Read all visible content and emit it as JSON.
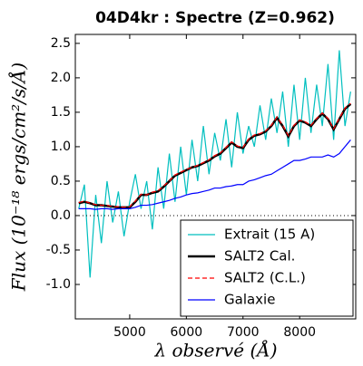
{
  "chart_data": {
    "type": "line",
    "title": "04D4kr : Spectre (Z=0.962)",
    "x_label": "λ observé (Å)",
    "y_label": "Flux (10⁻¹⁸ ergs/cm²/s/Å)",
    "x": [
      4100,
      4200,
      4300,
      4400,
      4500,
      4600,
      4700,
      4800,
      4900,
      5000,
      5100,
      5200,
      5300,
      5400,
      5500,
      5600,
      5700,
      5800,
      5900,
      6000,
      6100,
      6200,
      6300,
      6400,
      6500,
      6600,
      6700,
      6800,
      6900,
      7000,
      7100,
      7200,
      7300,
      7400,
      7500,
      7600,
      7700,
      7800,
      7900,
      8000,
      8100,
      8200,
      8300,
      8400,
      8500,
      8600,
      8700,
      8800,
      8900
    ],
    "series": [
      {
        "name": "Extrait (15 A)",
        "color": "#00bfbf",
        "width": 1.2,
        "values": [
          0.1,
          0.45,
          -0.9,
          0.3,
          -0.4,
          0.5,
          -0.1,
          0.35,
          -0.3,
          0.2,
          0.6,
          0.1,
          0.5,
          -0.2,
          0.7,
          0.1,
          0.9,
          0.2,
          1.0,
          0.3,
          1.1,
          0.5,
          1.3,
          0.6,
          1.2,
          0.8,
          1.4,
          0.7,
          1.5,
          0.9,
          1.3,
          1.0,
          1.6,
          1.1,
          1.7,
          1.2,
          1.8,
          1.0,
          1.9,
          1.1,
          2.0,
          1.2,
          1.9,
          1.3,
          2.2,
          1.1,
          2.4,
          1.3,
          1.8
        ]
      },
      {
        "name": "SALT2 Cal.",
        "color": "#000000",
        "width": 2.5,
        "values": [
          0.18,
          0.2,
          0.18,
          0.15,
          0.15,
          0.14,
          0.13,
          0.12,
          0.12,
          0.12,
          0.2,
          0.3,
          0.3,
          0.33,
          0.35,
          0.42,
          0.5,
          0.58,
          0.62,
          0.66,
          0.7,
          0.72,
          0.76,
          0.8,
          0.86,
          0.9,
          0.98,
          1.06,
          1.0,
          0.98,
          1.1,
          1.16,
          1.18,
          1.22,
          1.3,
          1.42,
          1.3,
          1.15,
          1.3,
          1.38,
          1.35,
          1.3,
          1.4,
          1.48,
          1.4,
          1.25,
          1.4,
          1.55,
          1.62
        ]
      },
      {
        "name": "SALT2 (C.L.)",
        "color": "#ff0000",
        "width": 1.2,
        "dashed": true,
        "values": [
          0.19,
          0.21,
          0.18,
          0.16,
          0.15,
          0.15,
          0.13,
          0.13,
          0.12,
          0.13,
          0.21,
          0.31,
          0.3,
          0.34,
          0.36,
          0.43,
          0.5,
          0.59,
          0.63,
          0.67,
          0.7,
          0.73,
          0.77,
          0.81,
          0.87,
          0.91,
          0.99,
          1.07,
          1.01,
          0.99,
          1.11,
          1.17,
          1.19,
          1.23,
          1.31,
          1.43,
          1.31,
          1.16,
          1.31,
          1.39,
          1.36,
          1.31,
          1.41,
          1.49,
          1.41,
          1.26,
          1.41,
          1.56,
          1.63
        ]
      },
      {
        "name": "Galaxie",
        "color": "#0000ff",
        "width": 1.2,
        "values": [
          0.1,
          0.1,
          0.1,
          0.09,
          0.1,
          0.1,
          0.09,
          0.1,
          0.1,
          0.1,
          0.12,
          0.15,
          0.15,
          0.16,
          0.18,
          0.2,
          0.22,
          0.25,
          0.27,
          0.3,
          0.32,
          0.33,
          0.35,
          0.37,
          0.4,
          0.4,
          0.42,
          0.43,
          0.45,
          0.45,
          0.5,
          0.52,
          0.55,
          0.58,
          0.6,
          0.65,
          0.7,
          0.75,
          0.8,
          0.8,
          0.82,
          0.85,
          0.85,
          0.85,
          0.88,
          0.85,
          0.9,
          1.0,
          1.1
        ]
      }
    ],
    "xlim": [
      4040,
      8990
    ],
    "ylim": [
      -1.5,
      2.63
    ],
    "xticks": [
      5000,
      6000,
      7000,
      8000
    ],
    "yticks": [
      {
        "value": -1,
        "label": "-1.0"
      },
      -0.5,
      {
        "value": 0,
        "label": "0.0"
      },
      0.5,
      {
        "value": 1,
        "label": "1.0"
      },
      1.5,
      {
        "value": 2,
        "label": "2.0"
      },
      2.5
    ],
    "hline": 0,
    "legend": "lower right"
  }
}
